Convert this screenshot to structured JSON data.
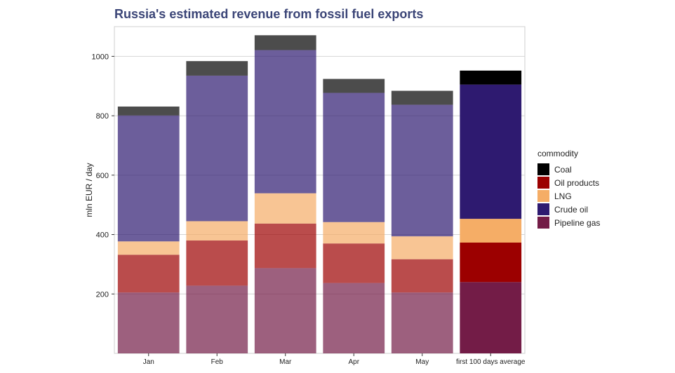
{
  "chart_data": {
    "type": "bar",
    "stacked": true,
    "title": "Russia's estimated revenue from fossil fuel exports",
    "xlabel": "",
    "ylabel": "mln EUR / day",
    "ylim": [
      0,
      1100
    ],
    "yticks": [
      200,
      400,
      600,
      800,
      1000
    ],
    "grid": true,
    "legend_title": "commodity",
    "legend_position": "right",
    "categories": [
      "Jan",
      "Feb",
      "Mar",
      "Apr",
      "May",
      "first 100 days average"
    ],
    "stack_order": [
      "Pipeline gas",
      "Oil products",
      "LNG",
      "Crude oil",
      "Coal"
    ],
    "series": [
      {
        "name": "Pipeline gas",
        "color": "#731c47",
        "values": [
          205,
          228,
          287,
          237,
          205,
          240
        ]
      },
      {
        "name": "Oil products",
        "color": "#9c0000",
        "values": [
          127,
          152,
          150,
          133,
          112,
          133
        ]
      },
      {
        "name": "LNG",
        "color": "#f5ad66",
        "values": [
          45,
          65,
          102,
          72,
          77,
          80
        ]
      },
      {
        "name": "Crude oil",
        "color": "#2e1a70",
        "values": [
          424,
          490,
          482,
          435,
          443,
          452
        ]
      },
      {
        "name": "Coal",
        "color": "#000000",
        "values": [
          30,
          49,
          50,
          47,
          47,
          47
        ]
      }
    ],
    "faded_opacity": 0.7,
    "highlight_category": "first 100 days average",
    "legend_order": [
      "Coal",
      "Oil products",
      "LNG",
      "Crude oil",
      "Pipeline gas"
    ]
  }
}
